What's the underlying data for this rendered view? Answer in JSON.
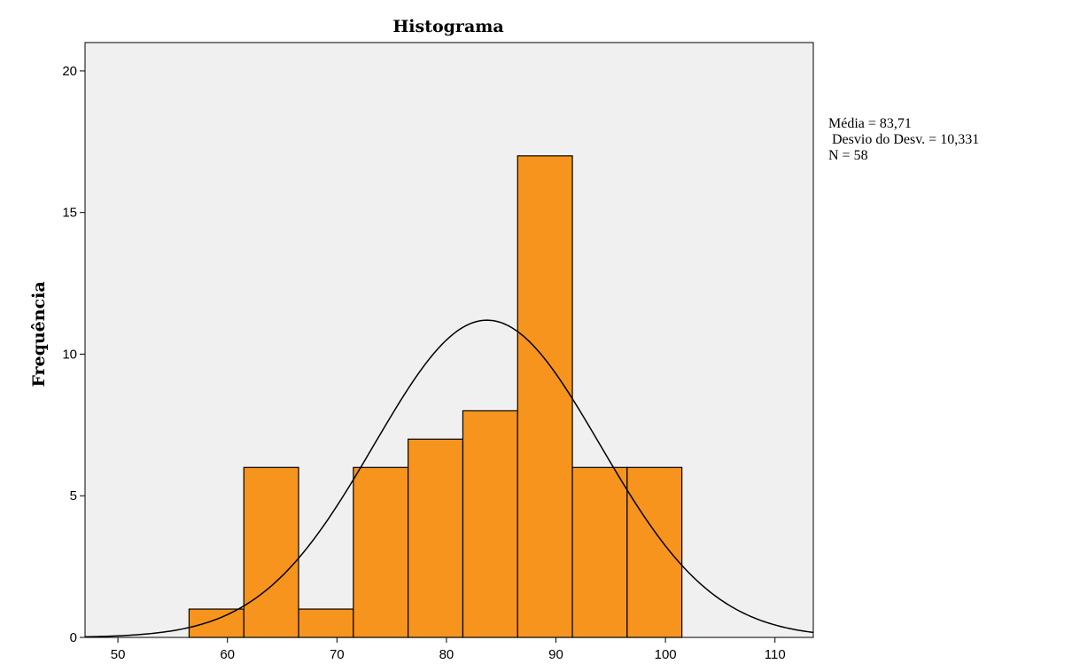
{
  "chart_data": {
    "type": "bar",
    "title": "Histograma",
    "xlabel": "",
    "ylabel": "Frequência",
    "bin_width": 5,
    "bins": [
      {
        "start": 56.5,
        "end": 61.5,
        "count": 1
      },
      {
        "start": 61.5,
        "end": 66.5,
        "count": 6
      },
      {
        "start": 66.5,
        "end": 71.5,
        "count": 1
      },
      {
        "start": 71.5,
        "end": 76.5,
        "count": 6
      },
      {
        "start": 76.5,
        "end": 81.5,
        "count": 7
      },
      {
        "start": 81.5,
        "end": 86.5,
        "count": 8
      },
      {
        "start": 86.5,
        "end": 91.5,
        "count": 17
      },
      {
        "start": 91.5,
        "end": 96.5,
        "count": 6
      },
      {
        "start": 96.5,
        "end": 101.5,
        "count": 6
      }
    ],
    "xlim": [
      47,
      113.5
    ],
    "ylim": [
      0,
      21
    ],
    "xticks": [
      50,
      60,
      70,
      80,
      90,
      100,
      110
    ],
    "yticks": [
      0,
      5,
      10,
      15,
      20
    ],
    "normal_curve": {
      "mean": 83.71,
      "sd": 10.331,
      "n": 58
    },
    "stats": {
      "mean_label": "Média = 83,71",
      "sd_label": " Desvio do Desv. = 10,331",
      "n_label": "N = 58"
    },
    "colors": {
      "plot_background": "#f0f0f0",
      "bar_fill": "#f7941d",
      "bar_stroke": "#000000",
      "curve": "#000000"
    }
  }
}
